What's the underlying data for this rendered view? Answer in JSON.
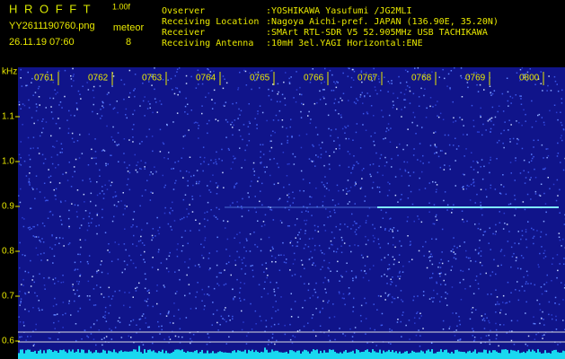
{
  "header": {
    "app": "H R O F F T",
    "version": "1.00f",
    "file": "YY2611190760.png",
    "timestamp": "26.11.19 07:60",
    "counter_label": "meteor",
    "counter_value": "8",
    "info": [
      {
        "label": "Ovserver",
        "value": ":YOSHIKAWA Yasufumi /JG2MLI"
      },
      {
        "label": "Receiving Location",
        "value": ":Nagoya Aichi-pref. JAPAN (136.90E, 35.20N)"
      },
      {
        "label": "Receiver",
        "value": ":SMArt RTL-SDR V5 52.905MHz USB TACHIKAWA"
      },
      {
        "label": "Receiving Antenna",
        "value": ":10mH 3el.YAGI Horizontal:ENE"
      }
    ]
  },
  "spectrogram": {
    "y_unit": "kHz",
    "ylim": [
      0.56,
      1.21
    ],
    "yticks": [
      1.1,
      {
        "value": 1,
        "label": "1.0"
      },
      0.9,
      0.8,
      0.7,
      0.6
    ],
    "time_labels": [
      "0761",
      "0762",
      "0763",
      "0764",
      "0765",
      "0766",
      "0767",
      "0768",
      "0769",
      "0800"
    ]
  }
}
